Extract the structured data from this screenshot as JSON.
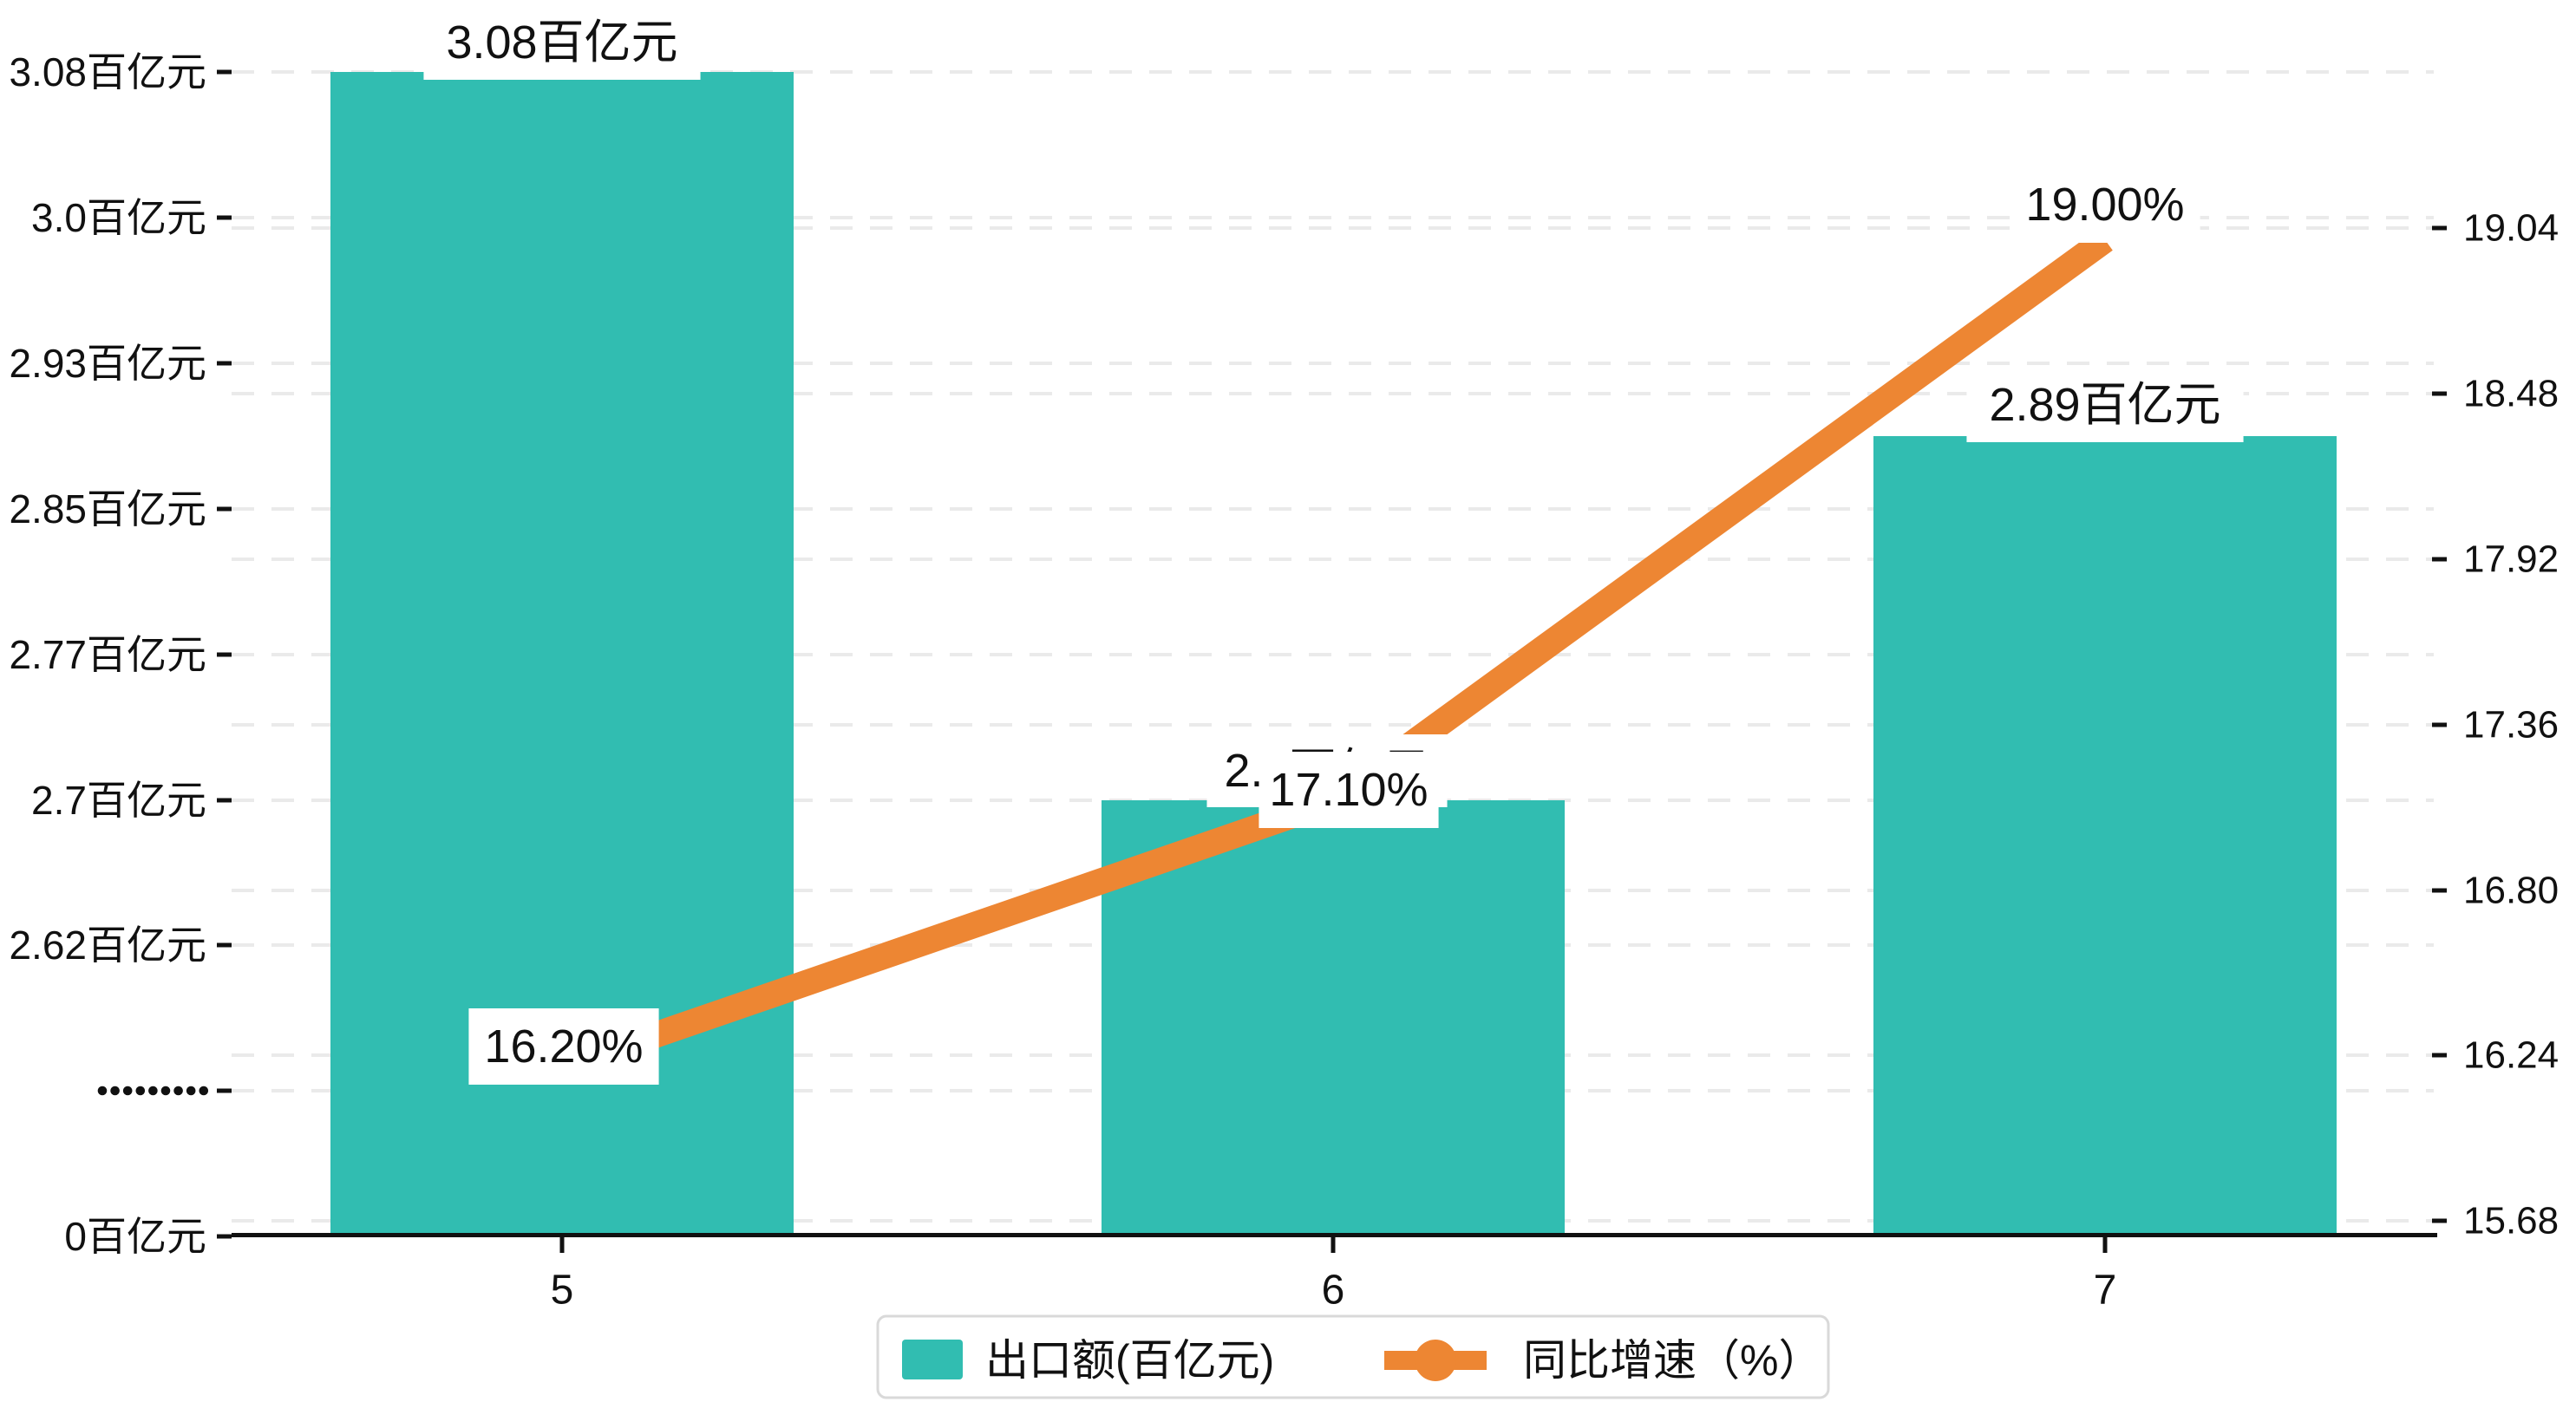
{
  "chart_data": {
    "type": "combo-bar-line",
    "categories": [
      "5",
      "6",
      "7"
    ],
    "series": [
      {
        "name": "出口额(百亿元)",
        "type": "bar",
        "axis": "left",
        "color": "#31BDB1",
        "values": [
          3.08,
          2.7,
          2.89
        ],
        "data_labels": [
          "3.08百亿元",
          "2.7百亿元",
          "2.89百亿元"
        ]
      },
      {
        "name": "同比增速（%）",
        "type": "line",
        "axis": "right",
        "color": "#ED8633",
        "values": [
          16.2,
          17.1,
          19.0
        ],
        "data_labels": [
          "16.20%",
          "17.10%",
          "19.00%"
        ]
      }
    ],
    "left_axis": {
      "unit": "百亿元",
      "tick_labels": [
        "3.08百亿元",
        "3.0百亿元",
        "2.93百亿元",
        "2.85百亿元",
        "2.77百亿元",
        "2.7百亿元",
        "2.62百亿元",
        "·········",
        "0百亿元"
      ],
      "tick_values": [
        3.08,
        3.0,
        2.93,
        2.85,
        2.77,
        2.7,
        2.62,
        null,
        0
      ],
      "has_axis_break": true,
      "break_tick_index": 7
    },
    "right_axis": {
      "tick_labels": [
        "19.04",
        "18.48",
        "17.92",
        "17.36",
        "16.80",
        "16.24",
        "15.68"
      ],
      "max": 19.04,
      "min": 15.68
    },
    "x_axis": {
      "tick_labels": [
        "5",
        "6",
        "7"
      ]
    },
    "legend": {
      "position": "bottom",
      "items": [
        {
          "label": "出口额(百亿元)",
          "marker": "square",
          "color": "#31BDB1"
        },
        {
          "label": "同比增速（%）",
          "marker": "line-dot",
          "color": "#ED8633"
        }
      ]
    },
    "grid": {
      "show": true,
      "style": "dashed",
      "color": "#EAEAEA"
    },
    "colors": {
      "bar": "#31BDB1",
      "line": "#ED8633",
      "axis": "#111111",
      "text": "#111111",
      "label_bg": "#FFFFFF",
      "gridline": "#EAEAEA",
      "legend_border": "#D9D9D9"
    }
  }
}
